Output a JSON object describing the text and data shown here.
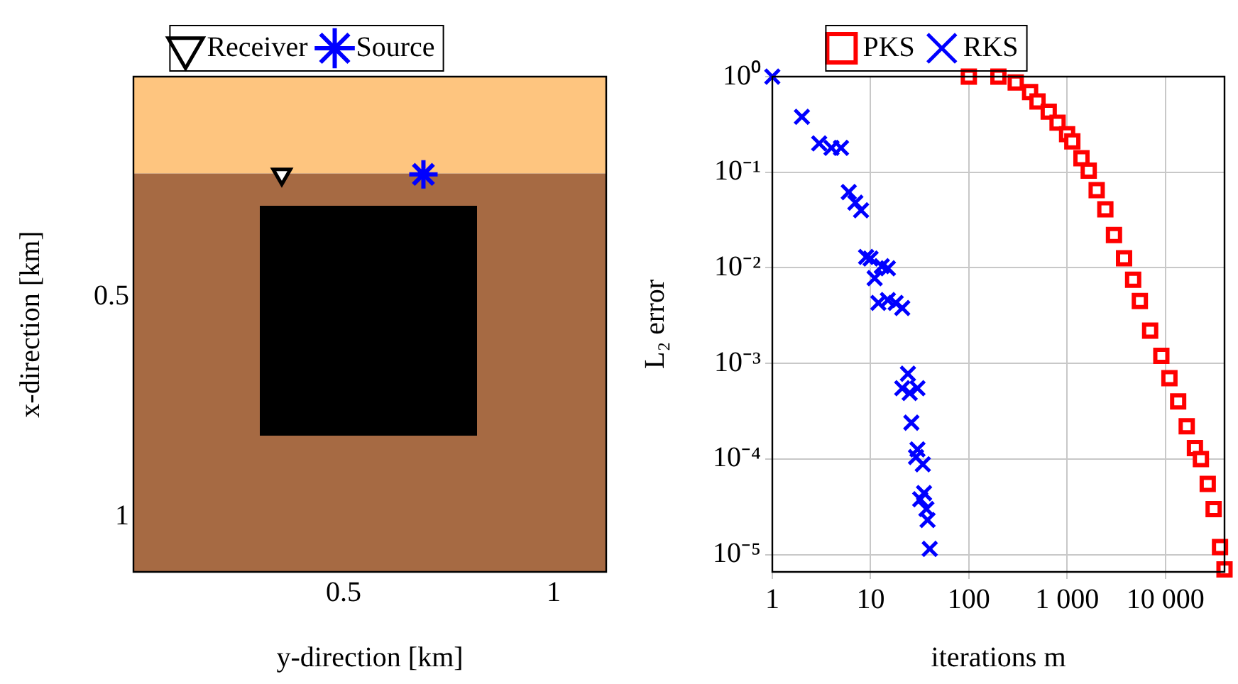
{
  "chart_data": [
    {
      "type": "scatter",
      "xlabel": "y-direction [km]",
      "ylabel": "x-direction [km]",
      "xlim": [
        0,
        1.125
      ],
      "ylim": [
        1.125,
        0
      ],
      "xticks": [
        0.5,
        1
      ],
      "yticks": [
        0.5,
        1
      ],
      "grid": false,
      "legend": "top",
      "bands": [
        {
          "axis": "y",
          "from": 0,
          "to": 0.22,
          "color": "#fec57f"
        },
        {
          "axis": "y",
          "from": 0.22,
          "to": 1.125,
          "color": "#a66a43"
        }
      ],
      "series": [
        {
          "name": "Receiver",
          "color": "#000000",
          "marker": "triangle",
          "x": [
            0.353
          ],
          "values": [
            0.222
          ]
        },
        {
          "name": "Source",
          "color": "#0000ff",
          "x": [
            0.69
          ],
          "values": [
            0.222
          ]
        }
      ]
    },
    {
      "type": "scatter",
      "xlabel": "iterations m",
      "ylabel": "L₂ error",
      "log": "xy",
      "grid": true,
      "legend": "top",
      "xlim": [
        1,
        40000
      ],
      "ylim": [
        6.6e-06,
        1
      ],
      "xticks": [
        1,
        10,
        100,
        {
          "value": 1000,
          "label": "1 000"
        },
        {
          "value": 10000,
          "label": "10 000"
        }
      ],
      "yticks": [
        {
          "value": 1,
          "label": "10⁰"
        },
        {
          "value": 0.1,
          "label": "10⁻¹"
        },
        {
          "value": 0.01,
          "label": "10⁻²"
        },
        {
          "value": 0.001,
          "label": "10⁻³"
        },
        {
          "value": 0.0001,
          "label": "10⁻⁴"
        },
        {
          "value": 1e-05,
          "label": "10⁻⁵"
        }
      ],
      "series": [
        {
          "name": "PKS",
          "color": "#ff0000",
          "marker": "square",
          "x": [
            100,
            200,
            300,
            420,
            500,
            650,
            800,
            1000,
            1130,
            1400,
            1660,
            2000,
            2450,
            3000,
            3800,
            4700,
            5500,
            7000,
            9100,
            11000,
            13500,
            16500,
            20000,
            23000,
            27000,
            31000,
            36000,
            40000
          ],
          "values": [
            1,
            1,
            0.87,
            0.69,
            0.55,
            0.43,
            0.33,
            0.25,
            0.21,
            0.14,
            0.104,
            0.065,
            0.041,
            0.022,
            0.0126,
            0.0075,
            0.0045,
            0.0022,
            0.0012,
            0.0007,
            0.0004,
            0.00022,
            0.00013,
            0.0001,
            5.5e-05,
            3e-05,
            1.2e-05,
            7e-06
          ]
        },
        {
          "name": "RKS",
          "color": "#0000ff",
          "marker": "cross",
          "x": [
            1,
            2,
            3,
            4,
            5,
            6,
            7,
            8,
            9,
            10,
            11,
            13,
            15,
            12,
            15,
            18,
            21,
            24,
            21,
            25,
            30,
            26,
            30,
            29,
            34,
            35,
            32,
            37,
            38,
            40
          ],
          "values": [
            1,
            0.38,
            0.2,
            0.18,
            0.18,
            0.062,
            0.048,
            0.04,
            0.013,
            0.0125,
            0.0078,
            0.0104,
            0.0099,
            0.0043,
            0.0046,
            0.0043,
            0.0038,
            0.00078,
            0.00055,
            0.00049,
            0.00055,
            0.00024,
            0.000126,
            0.000105,
            8.8e-05,
            4.4e-05,
            3.8e-05,
            3e-05,
            2.3e-05,
            1.15e-05
          ]
        }
      ]
    }
  ]
}
